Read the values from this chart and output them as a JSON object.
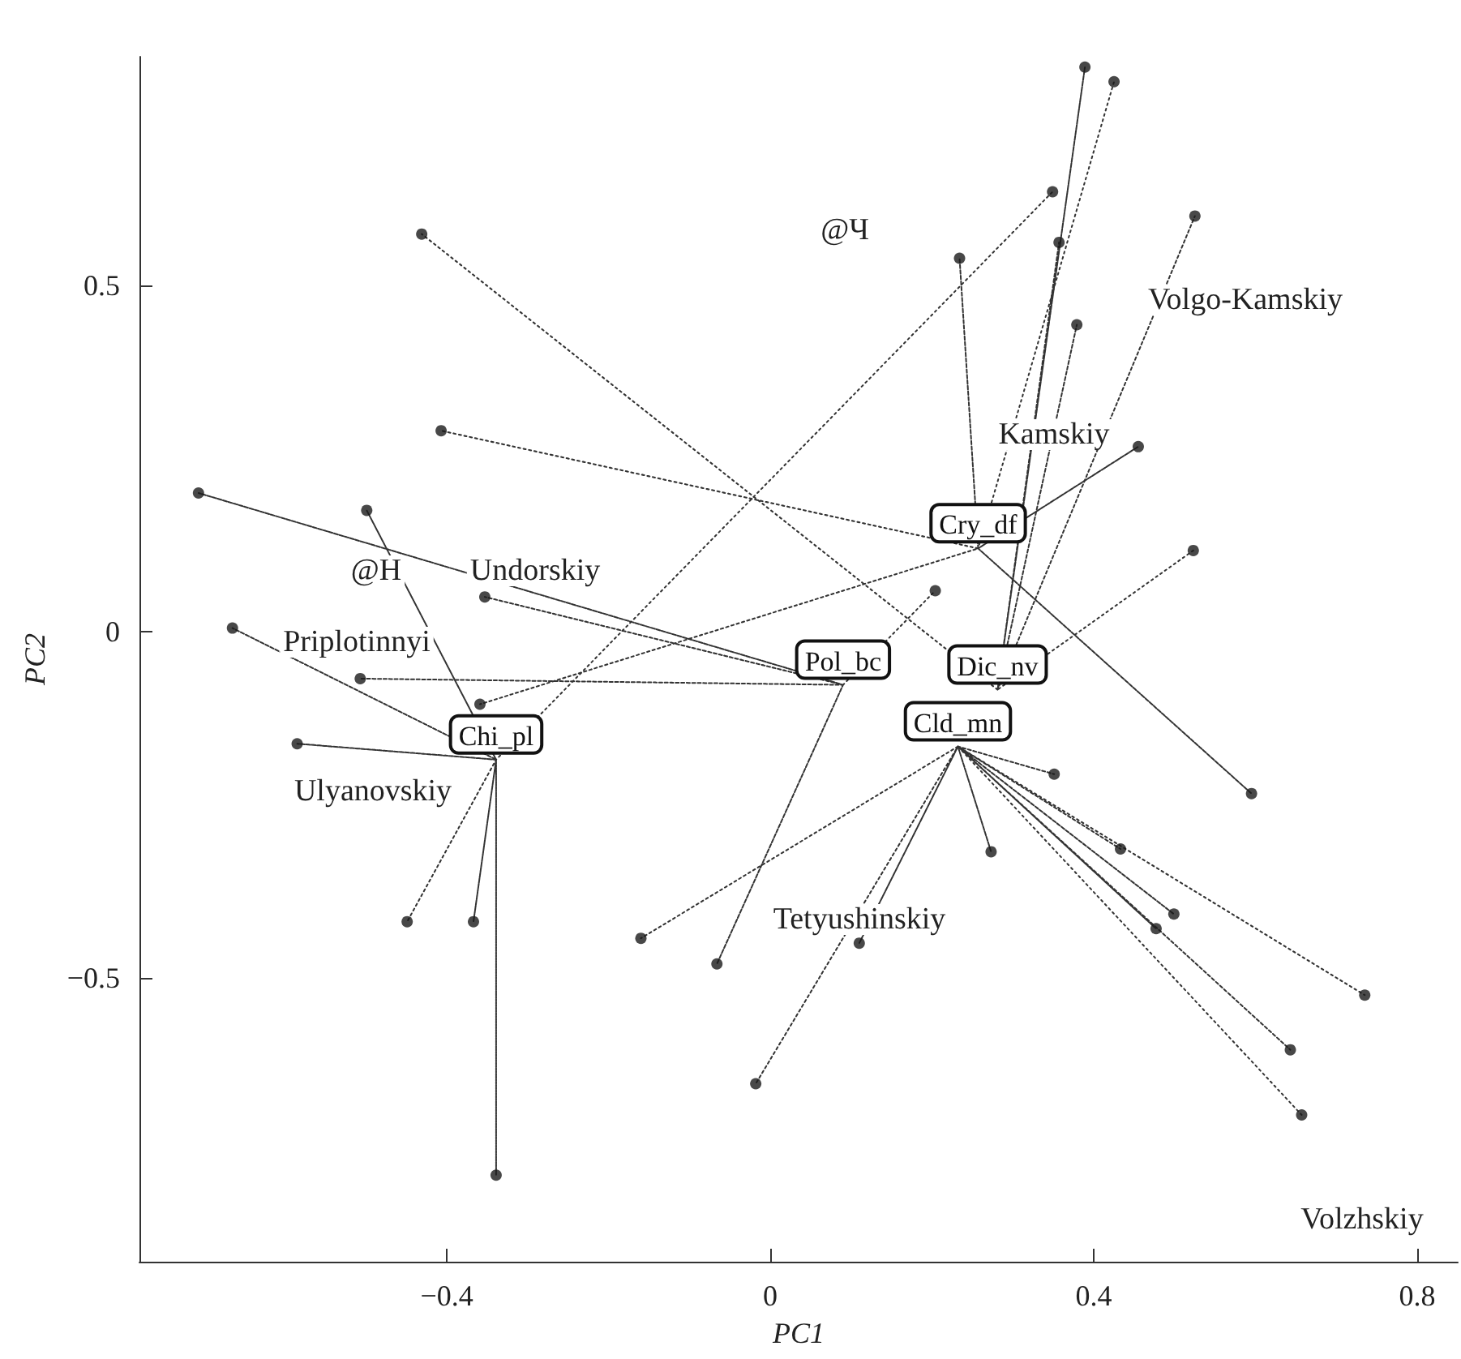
{
  "chart_data": {
    "type": "scatter",
    "xlabel": "PC1",
    "ylabel": "PC2",
    "xlim": [
      -0.78,
      0.85
    ],
    "ylim": [
      -0.91,
      0.83
    ],
    "xticks": [
      {
        "value": -0.4,
        "label": "−0.4"
      },
      0,
      0.4,
      0.8
    ],
    "yticks": [
      {
        "value": -0.5,
        "label": "−0.5"
      },
      0,
      0.5
    ],
    "grid": false,
    "legend": false,
    "series": [
      {
        "color": "#1a1a1a",
        "marker": "circle",
        "x": [
          -0.707,
          -0.665,
          -0.499,
          -0.407,
          -0.431,
          -0.353,
          -0.507,
          -0.585,
          -0.359,
          -0.449,
          -0.367,
          -0.339,
          -0.16,
          -0.066,
          -0.018,
          0.11,
          0.273,
          0.351,
          0.433,
          0.499,
          0.477,
          0.595,
          0.735,
          0.643,
          0.657,
          0.389,
          0.425,
          0.349,
          0.357,
          0.234,
          0.525,
          0.379,
          0.455,
          0.523,
          0.204
        ],
        "values": [
          0.2,
          0.005,
          0.175,
          0.29,
          0.574,
          0.05,
          -0.068,
          -0.162,
          -0.105,
          -0.419,
          -0.419,
          -0.785,
          -0.443,
          -0.48,
          -0.653,
          -0.45,
          -0.318,
          -0.206,
          -0.314,
          -0.408,
          -0.429,
          -0.234,
          -0.525,
          -0.604,
          -0.698,
          0.815,
          0.794,
          0.635,
          0.562,
          0.539,
          0.6,
          0.443,
          0.267,
          0.117,
          0.059
        ]
      },
      {
        "type": "line",
        "name": "Cry_df",
        "color": "#333333",
        "marker": "none",
        "line_style": "dotted",
        "x": [
          0.257,
          -0.407,
          0.257,
          -0.359,
          0.257,
          0.234,
          0.257,
          0.595,
          0.257,
          0.455,
          0.257,
          0.425
        ],
        "values": [
          0.12,
          0.29,
          0.12,
          -0.105,
          0.12,
          0.539,
          0.12,
          -0.234,
          0.12,
          0.267,
          0.12,
          0.794
        ]
      },
      {
        "type": "line",
        "name": "Pol_bc",
        "color": "#333333",
        "marker": "none",
        "line_style": "dotted",
        "x": [
          0.09,
          -0.707,
          0.09,
          -0.507,
          0.09,
          -0.353,
          0.09,
          -0.066,
          0.09,
          0.204
        ],
        "values": [
          -0.077,
          0.2,
          -0.077,
          -0.068,
          -0.077,
          0.05,
          -0.077,
          -0.48,
          -0.077,
          0.059
        ]
      },
      {
        "type": "line",
        "name": "Dic_nv",
        "color": "#333333",
        "marker": "none",
        "line_style": "dotted",
        "x": [
          0.281,
          -0.431,
          0.281,
          0.389,
          0.281,
          0.357,
          0.281,
          0.525,
          0.281,
          0.379,
          0.281,
          0.523
        ],
        "values": [
          -0.084,
          0.574,
          -0.084,
          0.815,
          -0.084,
          0.562,
          -0.084,
          0.6,
          -0.084,
          0.443,
          -0.084,
          0.117
        ]
      },
      {
        "type": "line",
        "name": "Cld_mn",
        "color": "#333333",
        "marker": "none",
        "line_style": "dotted",
        "x": [
          0.232,
          -0.16,
          0.232,
          -0.018,
          0.232,
          0.11,
          0.232,
          0.273,
          0.232,
          0.351,
          0.232,
          0.433,
          0.232,
          0.499,
          0.232,
          0.477,
          0.232,
          0.735,
          0.232,
          0.643,
          0.232,
          0.657
        ],
        "values": [
          -0.166,
          -0.443,
          -0.166,
          -0.653,
          -0.166,
          -0.45,
          -0.166,
          -0.318,
          -0.166,
          -0.206,
          -0.166,
          -0.314,
          -0.166,
          -0.408,
          -0.166,
          -0.429,
          -0.166,
          -0.525,
          -0.166,
          -0.604,
          -0.166,
          -0.698
        ]
      },
      {
        "type": "line",
        "name": "Chi_pl",
        "color": "#333333",
        "marker": "none",
        "line_style": "dotted",
        "x": [
          -0.339,
          -0.499,
          -0.339,
          -0.665,
          -0.339,
          -0.585,
          -0.339,
          -0.449,
          -0.339,
          -0.367,
          -0.339,
          -0.339,
          -0.339,
          0.349
        ],
        "values": [
          -0.185,
          0.175,
          -0.185,
          0.005,
          -0.185,
          -0.162,
          -0.185,
          -0.419,
          -0.185,
          -0.419,
          -0.185,
          -0.785,
          -0.185,
          0.635
        ]
      }
    ],
    "annotations": [
      "@Ч",
      "@Н",
      "Volgo-Kamskiy",
      "Kamskiy",
      "Undorskiy",
      "Priplotinnyi",
      "Ulyanovskiy",
      "Tetyushinskiy",
      "Volzhskiy"
    ]
  }
}
